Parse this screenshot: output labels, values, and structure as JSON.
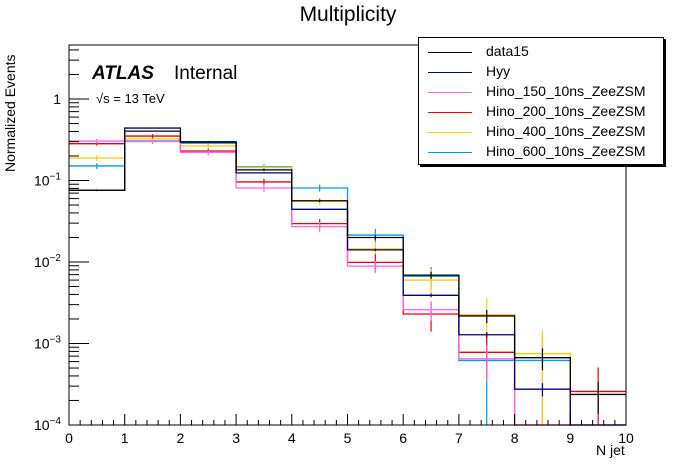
{
  "chart_data": {
    "type": "bar",
    "subtype": "step-histogram",
    "title": "Multiplicity",
    "xlabel": "N jet",
    "ylabel": "Normalized Events",
    "xlim": [
      0,
      10
    ],
    "ylim": [
      0.0001,
      4.6
    ],
    "yscale": "log",
    "grid": false,
    "x_ticks": [
      "0",
      "1",
      "2",
      "3",
      "4",
      "5",
      "6",
      "7",
      "8",
      "9",
      "10"
    ],
    "y_ticks": [
      {
        "value": 1,
        "label": "1"
      },
      {
        "value": 0.1,
        "label": "10^-1"
      },
      {
        "value": 0.01,
        "label": "10^-2"
      },
      {
        "value": 0.001,
        "label": "10^-3"
      },
      {
        "value": 0.0001,
        "label": "10^-4"
      }
    ],
    "legend_position": "top-right",
    "annotations": {
      "atlas": "ATLAS",
      "status": "Internal",
      "energy": "√s = 13 TeV"
    },
    "bin_edges": [
      0,
      1,
      2,
      3,
      4,
      5,
      6,
      7,
      8,
      9,
      10
    ],
    "series": [
      {
        "name": "data15",
        "color": "#000000",
        "values": [
          0.076,
          0.404,
          0.299,
          0.135,
          0.0565,
          0.02,
          0.0069,
          0.00218,
          0.00067,
          0.000237
        ],
        "errors": [
          0.002,
          0.006,
          0.005,
          0.004,
          0.002,
          0.0012,
          0.0007,
          0.0004,
          0.0002,
          0.0001
        ]
      },
      {
        "name": "Hyy",
        "color": "#000080",
        "values": [
          0.076,
          0.44,
          0.295,
          0.124,
          0.0443,
          0.0141,
          0.0039,
          0.00128,
          0.000275,
          0
        ],
        "errors": [
          0.001,
          0.003,
          0.003,
          0.002,
          0.001,
          0.0005,
          0.0002,
          0.0001,
          5e-05,
          0
        ]
      },
      {
        "name": "Hino_150_10ns_ZeeZSM",
        "color": "#ff66ee",
        "values": [
          0.305,
          0.3,
          0.221,
          0.081,
          0.0272,
          0.0089,
          0.0026,
          0.00065,
          0,
          0
        ],
        "errors": [
          0.02,
          0.02,
          0.015,
          0.009,
          0.004,
          0.0015,
          0.0007,
          0.0003,
          0,
          0
        ]
      },
      {
        "name": "Hino_200_10ns_ZeeZSM",
        "color": "#ee0000",
        "values": [
          0.283,
          0.351,
          0.23,
          0.096,
          0.0296,
          0.0099,
          0.0023,
          0.00078,
          0,
          0.000258
        ],
        "errors": [
          0.015,
          0.02,
          0.015,
          0.009,
          0.004,
          0.0025,
          0.0009,
          0.0004,
          0,
          0.00025
        ]
      },
      {
        "name": "Hino_400_10ns_ZeeZSM",
        "color": "#ffcc00",
        "values": [
          0.189,
          0.323,
          0.265,
          0.144,
          0.0555,
          0.0145,
          0.006,
          0.00226,
          0.00075,
          0
        ],
        "errors": [
          0.015,
          0.02,
          0.018,
          0.012,
          0.006,
          0.003,
          0.0022,
          0.0013,
          0.0007,
          0
        ]
      },
      {
        "name": "Hino_600_10ns_ZeeZSM",
        "color": "#0099ee",
        "values": [
          0.151,
          0.305,
          0.287,
          0.147,
          0.081,
          0.0214,
          0.0067,
          0.00062,
          0.00062,
          0
        ],
        "errors": [
          0.012,
          0.02,
          0.018,
          0.012,
          0.008,
          0.004,
          0.002,
          0.0006,
          0.0006,
          0
        ]
      }
    ]
  }
}
